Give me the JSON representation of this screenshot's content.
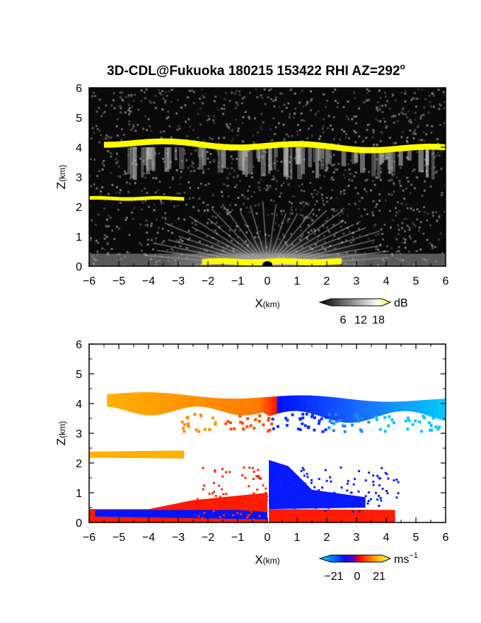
{
  "title": {
    "main": "3D-CDL@Fukuoka 180215 153422 RHI AZ=292",
    "degree_mark": "o"
  },
  "chart_data": [
    {
      "type": "heatmap",
      "name": "backscatter-intensity",
      "xlabel": "X",
      "xlabel_unit": "(km)",
      "ylabel": "Z",
      "ylabel_unit": "(km)",
      "xlim": [
        -6,
        6
      ],
      "ylim": [
        0,
        6
      ],
      "x_ticks": [
        "-6",
        "-5",
        "-4",
        "-3",
        "-2",
        "-1",
        "0",
        "1",
        "2",
        "3",
        "4",
        "5",
        "6"
      ],
      "y_ticks": [
        "0",
        "1",
        "2",
        "3",
        "4",
        "5",
        "6"
      ],
      "colorbar": {
        "unit": "dB",
        "ticks": [
          "6",
          "12",
          "18"
        ],
        "range": [
          0,
          21
        ],
        "colors": [
          "#000000",
          "#ffffff",
          "#ffff00"
        ]
      },
      "features": [
        {
          "label": "upper cloud layer",
          "x_range": [
            -5.5,
            6
          ],
          "z_center": 4.05,
          "z_thickness": 0.2,
          "color": "#ffff00"
        },
        {
          "label": "mid cloud layer",
          "x_range": [
            -6,
            -2.8
          ],
          "z_center": 2.28,
          "z_thickness": 0.12,
          "color": "#ffff00"
        },
        {
          "label": "near-ground return",
          "x_range": [
            -2.2,
            2.5
          ],
          "z_center": 0.15,
          "z_thickness": 0.2,
          "color": "#ffff00"
        }
      ]
    },
    {
      "type": "heatmap",
      "name": "doppler-velocity",
      "xlabel": "X",
      "xlabel_unit": "(km)",
      "ylabel": "Z",
      "ylabel_unit": "(km)",
      "xlim": [
        -6,
        6
      ],
      "ylim": [
        0,
        6
      ],
      "x_ticks": [
        "-6",
        "-5",
        "-4",
        "-3",
        "-2",
        "-1",
        "0",
        "1",
        "2",
        "3",
        "4",
        "5",
        "6"
      ],
      "y_ticks": [
        "0",
        "1",
        "2",
        "3",
        "4",
        "5",
        "6"
      ],
      "colorbar": {
        "unit": "ms",
        "unit_exponent": "−1",
        "ticks": [
          "−21",
          "0",
          "21"
        ],
        "range": [
          -30,
          30
        ],
        "colors": [
          "#00e5ff",
          "#0010ff",
          "#ff0000",
          "#ffb000",
          "#ffff66"
        ]
      },
      "regions": [
        {
          "x_range": [
            -5.4,
            0.1
          ],
          "z_range": [
            3.7,
            4.35
          ],
          "velocity": "positive (orange to red toward x=0)"
        },
        {
          "x_range": [
            0.1,
            6
          ],
          "z_range": [
            3.3,
            4.35
          ],
          "velocity": "negative (blue to cyan away from x=0)"
        },
        {
          "x_range": [
            -6,
            -2.8
          ],
          "z_range": [
            2.15,
            2.4
          ],
          "velocity": "positive (orange)"
        },
        {
          "x_range": [
            -6,
            0
          ],
          "z_range": [
            0,
            1.0
          ],
          "velocity": "mixed red/blue near ground"
        },
        {
          "x_range": [
            0,
            4.5
          ],
          "z_range": [
            0,
            2.2
          ],
          "velocity": "negative blue aloft, red near ground"
        }
      ]
    }
  ]
}
